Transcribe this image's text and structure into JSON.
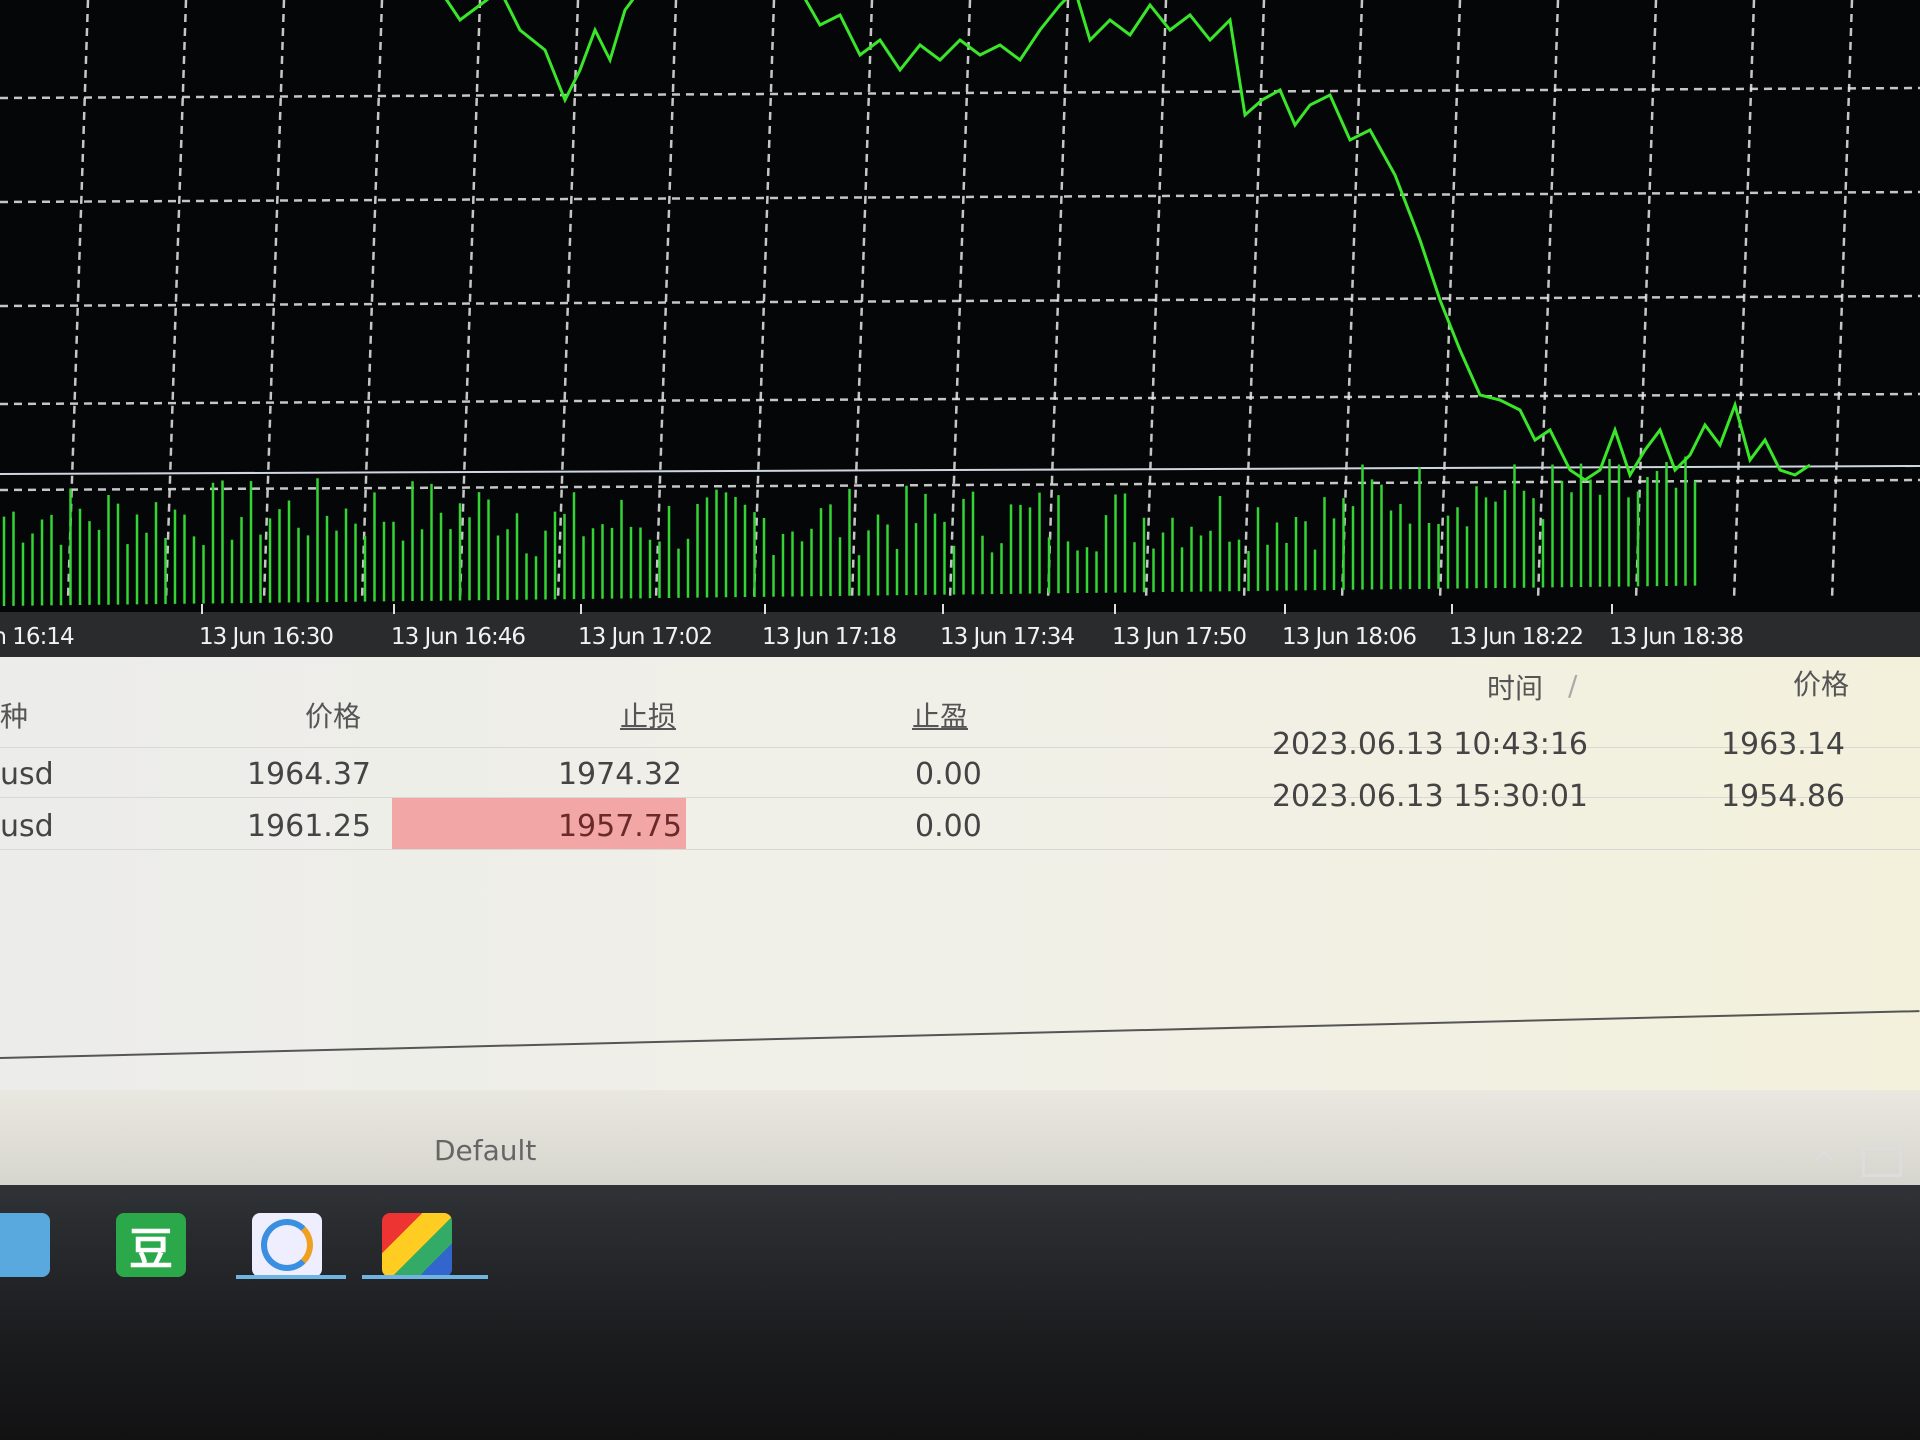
{
  "chart": {
    "background": "#050607",
    "line_color": "#39e62a",
    "volume_color": "#33d433",
    "grid_color": "#ffffff",
    "time_labels": [
      "n 16:14",
      "13 Jun 16:30",
      "13 Jun 16:46",
      "13 Jun 17:02",
      "13 Jun 17:18",
      "13 Jun 17:34",
      "13 Jun 17:50",
      "13 Jun 18:06",
      "13 Jun 18:22",
      "13 Jun 18:38"
    ]
  },
  "orders": {
    "columns": {
      "symbol": "种",
      "price": "价格",
      "sl": "止损",
      "tp": "止盈",
      "time": "时间",
      "sort_mark": "/",
      "current_price": "价格"
    },
    "rows": [
      {
        "symbol": "usd",
        "price": "1964.37",
        "sl": "1974.32",
        "tp": "0.00",
        "time": "2023.06.13 10:43:16",
        "current_price": "1963.14",
        "sl_highlight": false
      },
      {
        "symbol": "usd",
        "price": "1961.25",
        "sl": "1957.75",
        "tp": "0.00",
        "time": "2023.06.13 15:30:01",
        "current_price": "1954.86",
        "sl_highlight": true
      }
    ],
    "highlight_color": "#f2a6a6"
  },
  "status_bar": {
    "profile": "Default"
  },
  "taskbar": {
    "icons": [
      {
        "name": "robot-app-icon",
        "glyph": ""
      },
      {
        "name": "douban-app-icon",
        "glyph": "豆"
      },
      {
        "name": "browser-app-icon",
        "glyph": ""
      },
      {
        "name": "colorful-app-icon",
        "glyph": ""
      }
    ],
    "tray_chevron": "^"
  }
}
